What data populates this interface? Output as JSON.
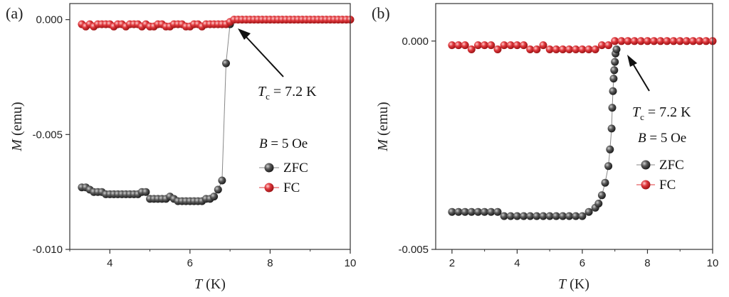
{
  "colors": {
    "zfc": "#4a4a4a",
    "fc": "#e0393e",
    "axis": "#333333",
    "connector": "#888888"
  },
  "chart_data": [
    {
      "panel": "(a)",
      "type": "scatter",
      "xlabel_italic": "T",
      "xlabel_unit": " (K)",
      "ylabel_italic": "M",
      "ylabel_unit": " (emu)",
      "xlim": [
        3.0,
        10.0
      ],
      "ylim": [
        -0.01,
        0.0007
      ],
      "xticks": [
        4,
        6,
        8,
        10
      ],
      "xtick_labels": [
        "4",
        "6",
        "8",
        "10"
      ],
      "yticks": [
        0.0,
        -0.005,
        -0.01
      ],
      "ytick_labels": [
        "0.000",
        "-0.005",
        "-0.010"
      ],
      "grid": false,
      "legend_location": "right-middle",
      "annotation": {
        "symbol": "T",
        "sub": "c",
        "text": " = 7.2 K",
        "points_to": [
          7.1,
          0.0
        ]
      },
      "field_label": {
        "symbol": "B",
        "text": " = 5 Oe"
      },
      "series": [
        {
          "name": "ZFC",
          "x": [
            3.3,
            3.4,
            3.5,
            3.6,
            3.7,
            3.8,
            3.9,
            4.0,
            4.1,
            4.2,
            4.3,
            4.4,
            4.5,
            4.6,
            4.7,
            4.8,
            4.9,
            5.0,
            5.1,
            5.2,
            5.3,
            5.4,
            5.5,
            5.6,
            5.7,
            5.8,
            5.9,
            6.0,
            6.1,
            6.2,
            6.3,
            6.4,
            6.5,
            6.6,
            6.7,
            6.8,
            6.9,
            7.0
          ],
          "y": [
            -0.0073,
            -0.0073,
            -0.0074,
            -0.0075,
            -0.0075,
            -0.0075,
            -0.0076,
            -0.0076,
            -0.0076,
            -0.0076,
            -0.0076,
            -0.0076,
            -0.0076,
            -0.0076,
            -0.0076,
            -0.0075,
            -0.0075,
            -0.0078,
            -0.0078,
            -0.0078,
            -0.0078,
            -0.0078,
            -0.0077,
            -0.0078,
            -0.0079,
            -0.0079,
            -0.0079,
            -0.0079,
            -0.0079,
            -0.0079,
            -0.0079,
            -0.0078,
            -0.0078,
            -0.0077,
            -0.0074,
            -0.007,
            -0.0019,
            -0.0002
          ]
        },
        {
          "name": "FC",
          "x": [
            3.3,
            3.4,
            3.5,
            3.6,
            3.7,
            3.8,
            3.9,
            4.0,
            4.1,
            4.2,
            4.3,
            4.4,
            4.5,
            4.6,
            4.7,
            4.8,
            4.9,
            5.0,
            5.1,
            5.2,
            5.3,
            5.4,
            5.5,
            5.6,
            5.7,
            5.8,
            5.9,
            6.0,
            6.1,
            6.2,
            6.3,
            6.4,
            6.5,
            6.6,
            6.7,
            6.8,
            6.9,
            7.0,
            7.1,
            7.2,
            7.3,
            7.4,
            7.5,
            7.6,
            7.7,
            7.8,
            7.9,
            8.0,
            8.1,
            8.2,
            8.3,
            8.4,
            8.5,
            8.6,
            8.7,
            8.8,
            8.9,
            9.0,
            9.1,
            9.2,
            9.3,
            9.4,
            9.5,
            9.6,
            9.7,
            9.8,
            9.9,
            10.0
          ],
          "y": [
            -0.0002,
            -0.0003,
            -0.0002,
            -0.0003,
            -0.0002,
            -0.0002,
            -0.0002,
            -0.0002,
            -0.0003,
            -0.0002,
            -0.0002,
            -0.0003,
            -0.0002,
            -0.0002,
            -0.0002,
            -0.0003,
            -0.0002,
            -0.0003,
            -0.0003,
            -0.0002,
            -0.0002,
            -0.0003,
            -0.0003,
            -0.0002,
            -0.0002,
            -0.0002,
            -0.0003,
            -0.0003,
            -0.0002,
            -0.0002,
            -0.0003,
            -0.0002,
            -0.0002,
            -0.0002,
            -0.0002,
            -0.0002,
            -0.0002,
            -0.0001,
            0.0,
            0.0,
            0.0,
            0.0,
            0.0,
            0.0,
            0.0,
            0.0,
            0.0,
            0.0,
            0.0,
            0.0,
            0.0,
            0.0,
            0.0,
            0.0,
            0.0,
            0.0,
            0.0,
            0.0,
            0.0,
            0.0,
            0.0,
            0.0,
            0.0,
            0.0,
            0.0,
            0.0,
            0.0,
            0.0
          ]
        }
      ]
    },
    {
      "panel": "(b)",
      "type": "scatter",
      "xlabel_italic": "T",
      "xlabel_unit": " (K)",
      "ylabel_italic": "M",
      "ylabel_unit": " (emu)",
      "xlim": [
        1.5,
        10.0
      ],
      "ylim": [
        -0.005,
        0.0009
      ],
      "xticks": [
        2,
        4,
        6,
        8,
        10
      ],
      "xtick_labels": [
        "2",
        "4",
        "6",
        "8",
        "10"
      ],
      "yticks": [
        0.0,
        -0.005
      ],
      "ytick_labels": [
        "0.000",
        "-0.005"
      ],
      "grid": false,
      "legend_location": "right-middle",
      "annotation": {
        "symbol": "T",
        "sub": "c",
        "text": " = 7.2 K",
        "points_to": [
          7.2,
          -0.0003
        ]
      },
      "field_label": {
        "symbol": "B",
        "text": " = 5 Oe"
      },
      "series": [
        {
          "name": "ZFC",
          "x": [
            2.0,
            2.2,
            2.4,
            2.6,
            2.8,
            3.0,
            3.2,
            3.4,
            3.6,
            3.8,
            4.0,
            4.2,
            4.4,
            4.6,
            4.8,
            5.0,
            5.2,
            5.4,
            5.6,
            5.8,
            6.0,
            6.2,
            6.4,
            6.5,
            6.6,
            6.7,
            6.8,
            6.85,
            6.9,
            6.92,
            6.94,
            6.96,
            6.98,
            7.0,
            7.02,
            7.05
          ],
          "y": [
            -0.0041,
            -0.0041,
            -0.0041,
            -0.0041,
            -0.0041,
            -0.0041,
            -0.0041,
            -0.0041,
            -0.0042,
            -0.0042,
            -0.0042,
            -0.0042,
            -0.0042,
            -0.0042,
            -0.0042,
            -0.0042,
            -0.0042,
            -0.0042,
            -0.0042,
            -0.0042,
            -0.0042,
            -0.0041,
            -0.004,
            -0.0039,
            -0.0037,
            -0.0034,
            -0.003,
            -0.0026,
            -0.0021,
            -0.0016,
            -0.0012,
            -0.0009,
            -0.0007,
            -0.0005,
            -0.0003,
            -0.0002
          ]
        },
        {
          "name": "FC",
          "x": [
            2.0,
            2.2,
            2.4,
            2.6,
            2.8,
            3.0,
            3.2,
            3.4,
            3.6,
            3.8,
            4.0,
            4.2,
            4.4,
            4.6,
            4.8,
            5.0,
            5.2,
            5.4,
            5.6,
            5.8,
            6.0,
            6.2,
            6.4,
            6.6,
            6.8,
            7.0,
            7.2,
            7.4,
            7.6,
            7.8,
            8.0,
            8.2,
            8.4,
            8.6,
            8.8,
            9.0,
            9.2,
            9.4,
            9.6,
            9.8,
            10.0
          ],
          "y": [
            -0.0001,
            -0.0001,
            -0.0001,
            -0.0002,
            -0.0001,
            -0.0001,
            -0.0001,
            -0.0002,
            -0.0001,
            -0.0001,
            -0.0001,
            -0.0001,
            -0.0002,
            -0.0002,
            -0.0001,
            -0.0002,
            -0.0002,
            -0.0002,
            -0.0002,
            -0.0002,
            -0.0002,
            -0.0002,
            -0.0002,
            -0.0001,
            -0.0001,
            0.0,
            0.0,
            0.0,
            0.0,
            0.0,
            0.0,
            0.0,
            0.0,
            0.0,
            0.0,
            0.0,
            0.0,
            0.0,
            0.0,
            0.0,
            0.0
          ]
        }
      ]
    }
  ]
}
